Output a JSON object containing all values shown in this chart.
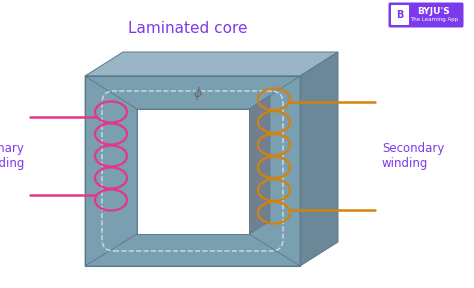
{
  "title": "Laminated core",
  "title_color": "#7c3aed",
  "title_fontsize": 11,
  "bg_color": "#ffffff",
  "core_color_front": "#8faabb",
  "core_color_dark": "#5a7a8a",
  "core_color_top": "#9ab5c5",
  "core_color_right": "#6a8898",
  "core_inner_dark": "#607080",
  "primary_color": "#e8358a",
  "secondary_color": "#d4820a",
  "label_primary": "Primary\nwinding",
  "label_secondary": "Secondary\nwinding",
  "label_color": "#7c3aed",
  "phi_symbol": "ϕ",
  "dashed_color": "#ccddee",
  "byju_color": "#7c3aed"
}
